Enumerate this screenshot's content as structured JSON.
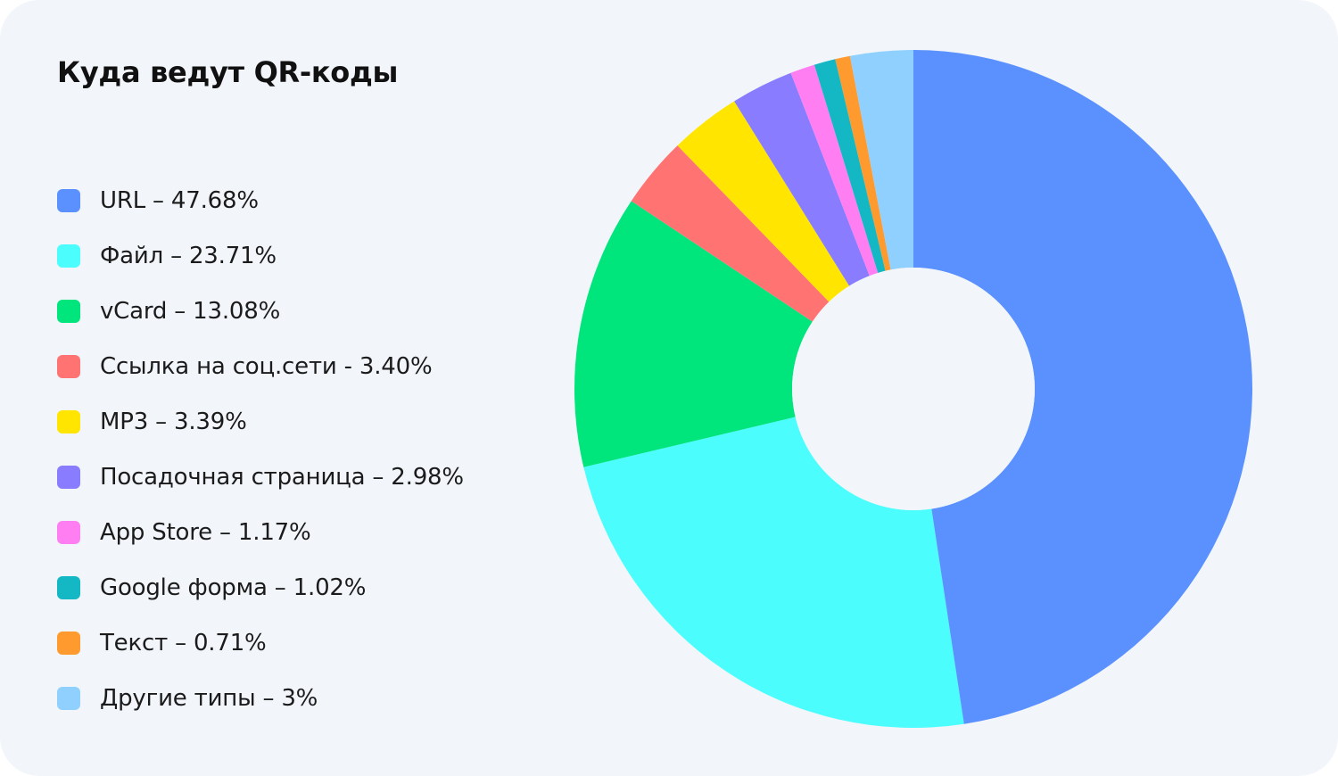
{
  "colors": {
    "background": "#f2f6fb",
    "hole": "#f2f6fb"
  },
  "chart_data": {
    "type": "pie",
    "title": "Куда ведут QR-коды",
    "legend_position": "left",
    "donut": true,
    "start": "top",
    "direction": "clockwise",
    "slices": [
      {
        "name": "URL",
        "value": 47.68,
        "color": "#5b91ff",
        "label": "URL – 47.68%"
      },
      {
        "name": "Файл",
        "value": 23.71,
        "color": "#4cfdfd",
        "label": "Файл – 23.71%"
      },
      {
        "name": "vCard",
        "value": 13.08,
        "color": "#00e67d",
        "label": "vCard – 13.08%"
      },
      {
        "name": "Ссылка на соц.сети",
        "value": 3.4,
        "color": "#ff7373",
        "label": "Ссылка на соц.сети - 3.40%"
      },
      {
        "name": "MP3",
        "value": 3.39,
        "color": "#ffe500",
        "label": "MP3 – 3.39%"
      },
      {
        "name": "Посадочная страница",
        "value": 2.98,
        "color": "#8a7cff",
        "label": "Посадочная страница – 2.98%"
      },
      {
        "name": "App Store",
        "value": 1.17,
        "color": "#ff7ef2",
        "label": "App Store – 1.17%"
      },
      {
        "name": "Google форма",
        "value": 1.02,
        "color": "#14b8c4",
        "label": "Google форма – 1.02%"
      },
      {
        "name": "Текст",
        "value": 0.71,
        "color": "#ff9a2e",
        "label": "Текст – 0.71%"
      },
      {
        "name": "Другие типы",
        "value": 3,
        "color": "#8fd0ff",
        "label": "Другие типы – 3%"
      }
    ],
    "draw_order": [
      "Файл",
      "vCard",
      "Ссылка на соц.сети",
      "MP3",
      "Посадочная страница",
      "App Store",
      "Google форма",
      "Текст",
      "Другие типы",
      "URL"
    ]
  }
}
